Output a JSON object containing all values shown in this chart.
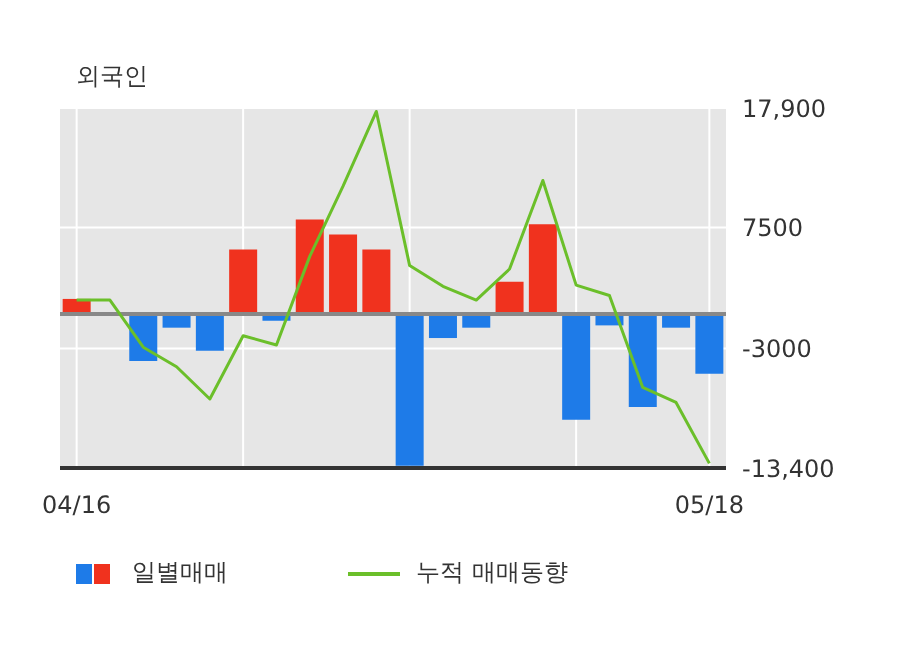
{
  "chart_data": {
    "type": "bar",
    "title": "외국인",
    "categories": [
      "04/16",
      null,
      null,
      null,
      null,
      null,
      null,
      null,
      null,
      null,
      null,
      null,
      null,
      null,
      null,
      null,
      null,
      null,
      null,
      "05/18"
    ],
    "series": [
      {
        "name": "일별매매",
        "colors": [
          "#f0321e",
          "#f0321e",
          "#1e7be8",
          "#1e7be8",
          "#1e7be8",
          "#f0321e",
          "#1e7be8",
          "#f0321e",
          "#f0321e",
          "#f0321e",
          "#1e7be8",
          "#1e7be8",
          "#1e7be8",
          "#f0321e",
          "#f0321e",
          "#1e7be8",
          "#1e7be8",
          "#1e7be8",
          "#1e7be8",
          "#1e7be8"
        ],
        "values": [
          1300,
          0,
          -4100,
          -1200,
          -3200,
          5600,
          -600,
          8200,
          6900,
          5600,
          -13200,
          -2100,
          -1200,
          2800,
          7800,
          -9200,
          -1000,
          -8100,
          -1200,
          -5200
        ]
      },
      {
        "name": "누적 매매동향",
        "type": "line",
        "color": "#6bbf2a",
        "values": [
          1200,
          1200,
          -2900,
          -4600,
          -7400,
          -1900,
          -2700,
          5000,
          11100,
          17600,
          4200,
          2400,
          1200,
          3900,
          11600,
          2500,
          1600,
          -6400,
          -7700,
          -13000
        ]
      }
    ],
    "ylim": [
      -13400,
      17900
    ],
    "yticks": [
      {
        "value": 17900,
        "label": "17,900"
      },
      7500,
      -3000,
      {
        "value": -13400,
        "label": "-13,400"
      }
    ],
    "ref_lines": [
      {
        "axis": "y",
        "value": 0,
        "color": "#888888"
      }
    ],
    "grid": true,
    "legend": "bottom",
    "marker": "none"
  }
}
